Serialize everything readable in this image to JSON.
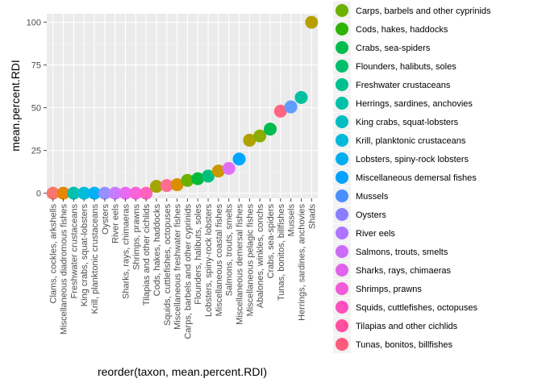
{
  "chart_data": {
    "type": "scatter",
    "xlabel": "reorder(taxon, mean.percent.RDI)",
    "ylabel": "mean.percent.RDI",
    "ylim": [
      -3,
      105
    ],
    "yticks": [
      0,
      25,
      50,
      75,
      100
    ],
    "grid": true,
    "legend_position": "right",
    "categories": [
      "Clams, cockles, arkshells",
      "Miscellaneous diadromous fishes",
      "Freshwater crustaceans",
      "King crabs, squat-lobsters",
      "Krill, planktonic crustaceans",
      "Oysters",
      "River eels",
      "Sharks, rays, chimaeras",
      "Shrimps, prawns",
      "Tilapias and other cichlids",
      "Cods, hakes, haddocks",
      "Squids, cuttlefishes, octopuses",
      "Miscellaneous freshwater fishes",
      "Carps, barbels and other cyprinids",
      "Flounders, halibuts, soles",
      "Lobsters, spiny-rock lobsters",
      "Miscellaneous coastal fishes",
      "Salmons, trouts, smelts",
      "Miscellaneous demersal fishes",
      "Miscellaneous pelagic fishes",
      "Abalones, winkles, conchs",
      "Crabs, sea-spiders",
      "Tunas, bonitos, billfishes",
      "Mussels",
      "Herrings, sardines, anchovies",
      "Shads"
    ],
    "values": [
      0,
      0,
      0,
      0,
      0,
      0,
      0,
      0,
      0,
      0,
      4,
      4.5,
      5,
      7.5,
      8.5,
      10,
      13,
      14.5,
      20,
      31,
      33.5,
      37.5,
      48,
      50.5,
      56,
      100
    ],
    "point_colors": [
      "#F8766D",
      "#E58700",
      "#00C0AF",
      "#00BCD8",
      "#00B0F6",
      "#9590FF",
      "#C77CFF",
      "#E76BF3",
      "#FA62DB",
      "#FF62BC",
      "#A3A500",
      "#FF6C91",
      "#D89000",
      "#6BB100",
      "#00BA38",
      "#00BF7D",
      "#C99800",
      "#E26EF7",
      "#00A5FF",
      "#B0A300",
      "#8BAC00",
      "#00BB4E",
      "#FF6480",
      "#619CFF",
      "#00C19F",
      "#B79F00"
    ],
    "legend": [
      {
        "label": "Carps, barbels and other cyprinids",
        "color": "#6BB100"
      },
      {
        "label": "Cods, hakes, haddocks",
        "color": "#2EB300"
      },
      {
        "label": "Crabs, sea-spiders",
        "color": "#00BB4E"
      },
      {
        "label": "Flounders, halibuts, soles",
        "color": "#00BF6C"
      },
      {
        "label": "Freshwater crustaceans",
        "color": "#00C08F"
      },
      {
        "label": "Herrings, sardines, anchovies",
        "color": "#00C1A8"
      },
      {
        "label": "King crabs, squat-lobsters",
        "color": "#00BDC2"
      },
      {
        "label": "Krill, planktonic crustaceans",
        "color": "#00B8DA"
      },
      {
        "label": "Lobsters, spiny-rock lobsters",
        "color": "#00AEEF"
      },
      {
        "label": "Miscellaneous demersal fishes",
        "color": "#00A2FF"
      },
      {
        "label": "Mussels",
        "color": "#4C8EFF"
      },
      {
        "label": "Oysters",
        "color": "#8A7EFF"
      },
      {
        "label": "River eels",
        "color": "#AE74FF"
      },
      {
        "label": "Salmons, trouts, smelts",
        "color": "#CB6CF7"
      },
      {
        "label": "Sharks, rays, chimaeras",
        "color": "#DF63EC"
      },
      {
        "label": "Shrimps, prawns",
        "color": "#F25AD9"
      },
      {
        "label": "Squids, cuttlefishes, octopuses",
        "color": "#FC50BF"
      },
      {
        "label": "Tilapias and other cichlids",
        "color": "#FF4F9F"
      },
      {
        "label": "Tunas, bonitos, billfishes",
        "color": "#FF5A7C"
      }
    ]
  }
}
